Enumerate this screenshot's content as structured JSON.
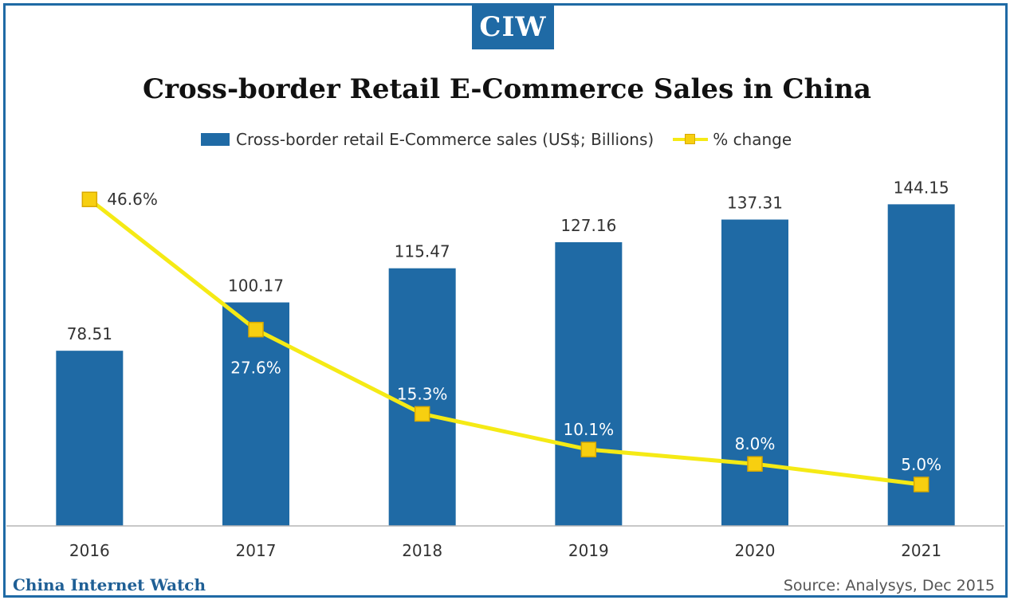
{
  "logo": {
    "text": "CIW"
  },
  "chart_data": {
    "type": "bar",
    "title": "Cross-border Retail E-Commerce Sales in China",
    "categories": [
      "2016",
      "2017",
      "2018",
      "2019",
      "2020",
      "2021"
    ],
    "series": [
      {
        "name": "Cross-border retail E-Commerce sales (US$; Billions)",
        "type": "bar",
        "values": [
          78.51,
          100.17,
          115.47,
          127.16,
          137.31,
          144.15
        ],
        "labels": [
          "78.51",
          "100.17",
          "115.47",
          "127.16",
          "137.31",
          "144.15"
        ],
        "color": "#1f6aa5"
      },
      {
        "name": "% change",
        "type": "line",
        "values": [
          46.6,
          27.6,
          15.3,
          10.1,
          8.0,
          5.0
        ],
        "labels": [
          "46.6%",
          "27.6%",
          "15.3%",
          "10.1%",
          "8.0%",
          "5.0%"
        ],
        "color": "#f5ea15",
        "marker_color": "#f7cf10"
      }
    ],
    "xlabel": "",
    "ylabel": "",
    "ylim": [
      0,
      165
    ],
    "y2lim": [
      0,
      60
    ],
    "legend_position": "top",
    "grid": false
  },
  "footer": {
    "left": "China Internet Watch",
    "right": "Source: Analysys, Dec 2015"
  }
}
